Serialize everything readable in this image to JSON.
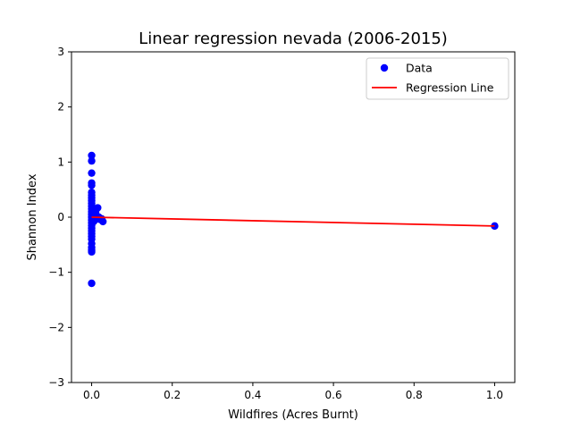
{
  "chart_data": {
    "type": "scatter",
    "title": "Linear regression nevada (2006-2015)",
    "xlabel": "Wildfires (Acres Burnt)",
    "ylabel": "Shannon Index",
    "xlim": [
      -0.05,
      1.05
    ],
    "ylim": [
      -3,
      3
    ],
    "xticks": [
      0.0,
      0.2,
      0.4,
      0.6,
      0.8,
      1.0
    ],
    "xtick_labels": [
      "0.0",
      "0.2",
      "0.4",
      "0.6",
      "0.8",
      "1.0"
    ],
    "yticks": [
      -3,
      -2,
      -1,
      0,
      1,
      2,
      3
    ],
    "ytick_labels": [
      "−3",
      "−2",
      "−1",
      "0",
      "1",
      "2",
      "3"
    ],
    "grid": false,
    "legend_position": "top-right",
    "legend": [
      {
        "label": "Data",
        "kind": "marker",
        "color": "#0000ff"
      },
      {
        "label": "Regression Line",
        "kind": "line",
        "color": "#ff0000"
      }
    ],
    "series": [
      {
        "name": "Data",
        "kind": "scatter",
        "color": "#0000ff",
        "points": [
          [
            0.0,
            1.12
          ],
          [
            0.0,
            1.02
          ],
          [
            0.0,
            0.8
          ],
          [
            0.0,
            0.62
          ],
          [
            0.0,
            0.58
          ],
          [
            0.0,
            0.45
          ],
          [
            0.0,
            0.4
          ],
          [
            0.0,
            0.35
          ],
          [
            0.0,
            0.3
          ],
          [
            0.0,
            0.25
          ],
          [
            0.0,
            0.2
          ],
          [
            0.0,
            0.15
          ],
          [
            0.0,
            0.1
          ],
          [
            0.0,
            0.05
          ],
          [
            0.0,
            0.0
          ],
          [
            0.0,
            -0.05
          ],
          [
            0.0,
            -0.1
          ],
          [
            0.0,
            -0.15
          ],
          [
            0.0,
            -0.2
          ],
          [
            0.0,
            -0.25
          ],
          [
            0.0,
            -0.3
          ],
          [
            0.0,
            -0.35
          ],
          [
            0.0,
            -0.4
          ],
          [
            0.0,
            -0.48
          ],
          [
            0.0,
            -0.55
          ],
          [
            0.0,
            -0.6
          ],
          [
            0.0,
            -0.63
          ],
          [
            0.0,
            -1.2
          ],
          [
            0.003,
            0.12
          ],
          [
            0.003,
            -0.02
          ],
          [
            0.004,
            0.08
          ],
          [
            0.005,
            -0.08
          ],
          [
            0.006,
            0.05
          ],
          [
            0.007,
            0.02
          ],
          [
            0.008,
            -0.05
          ],
          [
            0.01,
            0.1
          ],
          [
            0.012,
            0.03
          ],
          [
            0.015,
            0.17
          ],
          [
            0.016,
            -0.03
          ],
          [
            0.018,
            0.0
          ],
          [
            0.02,
            -0.04
          ],
          [
            0.025,
            -0.03
          ],
          [
            0.028,
            -0.08
          ],
          [
            1.0,
            -0.16
          ]
        ]
      },
      {
        "name": "Regression Line",
        "kind": "line",
        "color": "#ff0000",
        "points": [
          [
            0.0,
            0.0
          ],
          [
            1.0,
            -0.16
          ]
        ]
      }
    ]
  }
}
